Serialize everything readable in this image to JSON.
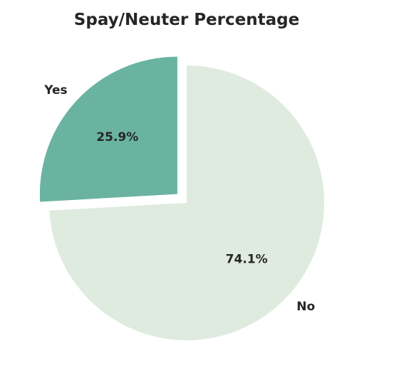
{
  "chart_data": {
    "type": "pie",
    "title": "Spay/Neuter Percentage",
    "categories": [
      "Yes",
      "No"
    ],
    "values": [
      25.9,
      74.1
    ],
    "value_labels": [
      "25.9%",
      "74.1%"
    ],
    "colors": [
      "#6ab3a1",
      "#dfebdf"
    ],
    "exploded": [
      "Yes"
    ],
    "start_angle_deg": 90,
    "direction": "counterclockwise",
    "legend": "none"
  }
}
